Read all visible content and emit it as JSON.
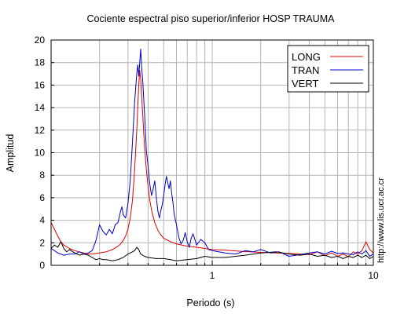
{
  "chart_data": {
    "type": "line",
    "title": "Cociente espectral piso superior/inferior  HOSP TRAUMA",
    "xlabel": "Periodo (s)",
    "ylabel": "Amplitud",
    "xscale": "log",
    "xlim": [
      0.1,
      10
    ],
    "ylim": [
      0,
      20
    ],
    "grid": true,
    "legend_position": "top-right",
    "credit": "http://www.lis.ucr.ac.cr",
    "x_ticks": [
      {
        "value": 1,
        "label": "1"
      },
      {
        "value": 10,
        "label": "10"
      }
    ],
    "x_minor_ticks": [
      0.2,
      0.3,
      0.4,
      0.5,
      0.6,
      0.7,
      0.8,
      0.9,
      2,
      3,
      4,
      5,
      6,
      7,
      8,
      9
    ],
    "y_ticks": [
      0,
      2,
      4,
      6,
      8,
      10,
      12,
      14,
      16,
      18,
      20
    ],
    "series": [
      {
        "name": "LONG",
        "color": "#e00000",
        "points": [
          [
            0.1,
            3.8
          ],
          [
            0.105,
            3.2
          ],
          [
            0.11,
            2.6
          ],
          [
            0.115,
            2.1
          ],
          [
            0.12,
            1.8
          ],
          [
            0.13,
            1.5
          ],
          [
            0.14,
            1.3
          ],
          [
            0.15,
            1.2
          ],
          [
            0.16,
            1.1
          ],
          [
            0.17,
            1.0
          ],
          [
            0.18,
            1.0
          ],
          [
            0.19,
            1.05
          ],
          [
            0.2,
            1.1
          ],
          [
            0.21,
            1.15
          ],
          [
            0.22,
            1.2
          ],
          [
            0.23,
            1.3
          ],
          [
            0.24,
            1.4
          ],
          [
            0.25,
            1.55
          ],
          [
            0.26,
            1.7
          ],
          [
            0.27,
            1.9
          ],
          [
            0.28,
            2.2
          ],
          [
            0.29,
            2.6
          ],
          [
            0.3,
            3.2
          ],
          [
            0.31,
            4.2
          ],
          [
            0.32,
            5.8
          ],
          [
            0.33,
            8.5
          ],
          [
            0.34,
            12.0
          ],
          [
            0.35,
            16.0
          ],
          [
            0.355,
            17.3
          ],
          [
            0.36,
            16.5
          ],
          [
            0.37,
            13.5
          ],
          [
            0.38,
            10.5
          ],
          [
            0.39,
            8.5
          ],
          [
            0.4,
            7.0
          ],
          [
            0.41,
            5.8
          ],
          [
            0.42,
            4.9
          ],
          [
            0.44,
            3.8
          ],
          [
            0.46,
            3.1
          ],
          [
            0.48,
            2.7
          ],
          [
            0.5,
            2.4
          ],
          [
            0.55,
            2.1
          ],
          [
            0.6,
            1.9
          ],
          [
            0.7,
            1.7
          ],
          [
            0.8,
            1.6
          ],
          [
            0.9,
            1.5
          ],
          [
            1.0,
            1.4
          ],
          [
            1.2,
            1.35
          ],
          [
            1.5,
            1.25
          ],
          [
            2.0,
            1.15
          ],
          [
            2.5,
            1.1
          ],
          [
            3.0,
            1.05
          ],
          [
            3.5,
            1.0
          ],
          [
            4.0,
            0.95
          ],
          [
            4.5,
            1.2
          ],
          [
            5.0,
            0.85
          ],
          [
            5.5,
            1.1
          ],
          [
            6.0,
            0.8
          ],
          [
            6.5,
            1.0
          ],
          [
            7.0,
            0.75
          ],
          [
            7.5,
            1.2
          ],
          [
            8.0,
            1.0
          ],
          [
            8.5,
            1.3
          ],
          [
            9.0,
            2.1
          ],
          [
            9.5,
            1.4
          ],
          [
            10.0,
            1.1
          ]
        ]
      },
      {
        "name": "TRAN",
        "color": "#0000cc",
        "points": [
          [
            0.1,
            1.5
          ],
          [
            0.105,
            1.3
          ],
          [
            0.11,
            1.1
          ],
          [
            0.12,
            0.9
          ],
          [
            0.13,
            1.0
          ],
          [
            0.14,
            1.0
          ],
          [
            0.15,
            1.2
          ],
          [
            0.16,
            1.0
          ],
          [
            0.17,
            1.1
          ],
          [
            0.18,
            1.3
          ],
          [
            0.19,
            2.2
          ],
          [
            0.2,
            3.6
          ],
          [
            0.21,
            3.0
          ],
          [
            0.22,
            2.7
          ],
          [
            0.23,
            3.2
          ],
          [
            0.24,
            2.8
          ],
          [
            0.25,
            3.6
          ],
          [
            0.26,
            3.8
          ],
          [
            0.27,
            4.8
          ],
          [
            0.275,
            5.2
          ],
          [
            0.28,
            4.5
          ],
          [
            0.29,
            4.2
          ],
          [
            0.3,
            5.5
          ],
          [
            0.31,
            7.5
          ],
          [
            0.32,
            11.0
          ],
          [
            0.33,
            14.5
          ],
          [
            0.34,
            17.0
          ],
          [
            0.345,
            17.8
          ],
          [
            0.35,
            16.8
          ],
          [
            0.355,
            18.0
          ],
          [
            0.36,
            19.2
          ],
          [
            0.365,
            17.5
          ],
          [
            0.37,
            16.5
          ],
          [
            0.38,
            13.5
          ],
          [
            0.39,
            10.2
          ],
          [
            0.4,
            8.8
          ],
          [
            0.41,
            7.2
          ],
          [
            0.42,
            6.2
          ],
          [
            0.43,
            6.8
          ],
          [
            0.44,
            7.5
          ],
          [
            0.45,
            6.0
          ],
          [
            0.46,
            4.8
          ],
          [
            0.47,
            4.2
          ],
          [
            0.48,
            4.9
          ],
          [
            0.49,
            5.4
          ],
          [
            0.5,
            6.2
          ],
          [
            0.51,
            7.2
          ],
          [
            0.52,
            7.9
          ],
          [
            0.53,
            7.3
          ],
          [
            0.54,
            6.8
          ],
          [
            0.55,
            7.5
          ],
          [
            0.56,
            6.4
          ],
          [
            0.57,
            5.6
          ],
          [
            0.58,
            4.6
          ],
          [
            0.6,
            3.6
          ],
          [
            0.62,
            2.5
          ],
          [
            0.64,
            1.9
          ],
          [
            0.66,
            2.2
          ],
          [
            0.68,
            2.9
          ],
          [
            0.7,
            2.1
          ],
          [
            0.72,
            1.6
          ],
          [
            0.74,
            2.4
          ],
          [
            0.76,
            2.8
          ],
          [
            0.78,
            2.3
          ],
          [
            0.8,
            1.8
          ],
          [
            0.85,
            2.3
          ],
          [
            0.9,
            2.0
          ],
          [
            0.95,
            1.4
          ],
          [
            1.0,
            1.3
          ],
          [
            1.2,
            1.1
          ],
          [
            1.4,
            1.0
          ],
          [
            1.6,
            1.3
          ],
          [
            1.8,
            1.2
          ],
          [
            2.0,
            1.4
          ],
          [
            2.3,
            1.1
          ],
          [
            2.6,
            1.2
          ],
          [
            3.0,
            0.8
          ],
          [
            3.5,
            0.95
          ],
          [
            4.0,
            1.1
          ],
          [
            4.5,
            1.2
          ],
          [
            5.0,
            1.0
          ],
          [
            5.5,
            1.25
          ],
          [
            6.0,
            1.05
          ],
          [
            6.5,
            1.1
          ],
          [
            7.0,
            1.0
          ],
          [
            7.5,
            0.95
          ],
          [
            8.0,
            1.2
          ],
          [
            8.5,
            1.0
          ],
          [
            9.0,
            1.3
          ],
          [
            9.5,
            0.8
          ],
          [
            10.0,
            1.0
          ]
        ]
      },
      {
        "name": "VERT",
        "color": "#000000",
        "points": [
          [
            0.1,
            1.5
          ],
          [
            0.105,
            1.8
          ],
          [
            0.11,
            1.6
          ],
          [
            0.115,
            2.1
          ],
          [
            0.12,
            1.5
          ],
          [
            0.125,
            1.2
          ],
          [
            0.13,
            1.4
          ],
          [
            0.14,
            1.1
          ],
          [
            0.15,
            0.9
          ],
          [
            0.16,
            1.0
          ],
          [
            0.17,
            0.9
          ],
          [
            0.18,
            0.7
          ],
          [
            0.19,
            0.5
          ],
          [
            0.2,
            0.6
          ],
          [
            0.21,
            0.5
          ],
          [
            0.22,
            0.5
          ],
          [
            0.24,
            0.4
          ],
          [
            0.26,
            0.5
          ],
          [
            0.28,
            0.7
          ],
          [
            0.3,
            1.0
          ],
          [
            0.32,
            1.2
          ],
          [
            0.33,
            1.3
          ],
          [
            0.34,
            1.6
          ],
          [
            0.35,
            1.4
          ],
          [
            0.36,
            1.0
          ],
          [
            0.38,
            0.8
          ],
          [
            0.4,
            0.7
          ],
          [
            0.45,
            0.6
          ],
          [
            0.5,
            0.6
          ],
          [
            0.55,
            0.5
          ],
          [
            0.6,
            0.4
          ],
          [
            0.7,
            0.5
          ],
          [
            0.8,
            0.6
          ],
          [
            0.9,
            0.8
          ],
          [
            1.0,
            0.7
          ],
          [
            1.2,
            0.7
          ],
          [
            1.4,
            0.8
          ],
          [
            1.6,
            0.9
          ],
          [
            1.8,
            1.0
          ],
          [
            2.0,
            1.1
          ],
          [
            2.5,
            1.2
          ],
          [
            3.0,
            1.0
          ],
          [
            3.5,
            0.9
          ],
          [
            4.0,
            1.0
          ],
          [
            4.5,
            0.8
          ],
          [
            5.0,
            0.9
          ],
          [
            5.5,
            0.7
          ],
          [
            6.0,
            0.8
          ],
          [
            6.5,
            0.6
          ],
          [
            7.0,
            0.8
          ],
          [
            7.5,
            0.7
          ],
          [
            8.0,
            0.9
          ],
          [
            8.5,
            0.7
          ],
          [
            9.0,
            0.9
          ],
          [
            9.5,
            0.6
          ],
          [
            10.0,
            0.8
          ]
        ]
      }
    ]
  }
}
